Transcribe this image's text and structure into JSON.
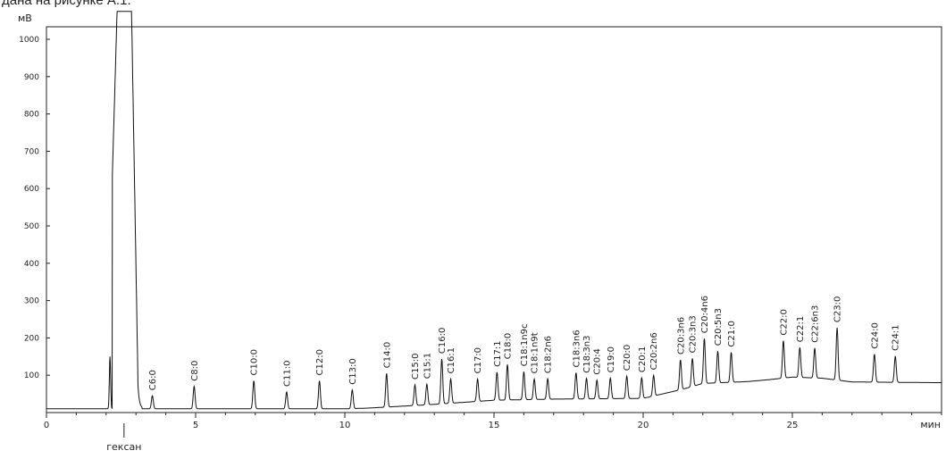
{
  "caption": "дана на рисунке А.1.",
  "chart_data": {
    "type": "line",
    "title": "",
    "ylabel": "мВ",
    "xlabel": "мин",
    "xlim": [
      0,
      30
    ],
    "ylim": [
      0,
      1080
    ],
    "x_ticks": [
      0,
      5,
      10,
      15,
      20,
      25
    ],
    "y_ticks": [
      100,
      200,
      300,
      400,
      500,
      600,
      700,
      800,
      900,
      1000
    ],
    "grid": false,
    "solvent_label": "гексан",
    "solvent_x": 2.6,
    "main_peak": {
      "name": "гексан",
      "x_start": 2.25,
      "x_end": 2.95,
      "height": 1075
    },
    "peaks": [
      {
        "name": "C6:0",
        "x": 3.55,
        "height": 35
      },
      {
        "name": "C8:0",
        "x": 4.95,
        "height": 60
      },
      {
        "name": "C10:0",
        "x": 6.95,
        "height": 75
      },
      {
        "name": "C11:0",
        "x": 8.05,
        "height": 45
      },
      {
        "name": "C12:0",
        "x": 9.15,
        "height": 75
      },
      {
        "name": "C13:0",
        "x": 10.25,
        "height": 50
      },
      {
        "name": "C14:0",
        "x": 11.4,
        "height": 90
      },
      {
        "name": "C15:0",
        "x": 12.35,
        "height": 55
      },
      {
        "name": "C15:1",
        "x": 12.75,
        "height": 55
      },
      {
        "name": "C16:0",
        "x": 13.25,
        "height": 120
      },
      {
        "name": "C16:1",
        "x": 13.55,
        "height": 65
      },
      {
        "name": "C17:0",
        "x": 14.45,
        "height": 60
      },
      {
        "name": "C17:1",
        "x": 15.1,
        "height": 75
      },
      {
        "name": "C18:0",
        "x": 15.45,
        "height": 95
      },
      {
        "name": "C18:1n9c",
        "x": 16.0,
        "height": 75
      },
      {
        "name": "C18:1n9t",
        "x": 16.35,
        "height": 55
      },
      {
        "name": "C18:2n6",
        "x": 16.8,
        "height": 55
      },
      {
        "name": "C18:3n6",
        "x": 17.75,
        "height": 70
      },
      {
        "name": "C18:3n3",
        "x": 18.1,
        "height": 55
      },
      {
        "name": "C20:4",
        "x": 18.45,
        "height": 50
      },
      {
        "name": "C19:0",
        "x": 18.9,
        "height": 55
      },
      {
        "name": "C20:0",
        "x": 19.45,
        "height": 60
      },
      {
        "name": "C20:1",
        "x": 19.95,
        "height": 55
      },
      {
        "name": "C20:2n6",
        "x": 20.35,
        "height": 55
      },
      {
        "name": "C20:3n6",
        "x": 21.25,
        "height": 80
      },
      {
        "name": "C20:3n3",
        "x": 21.65,
        "height": 75
      },
      {
        "name": "C20:4n6",
        "x": 22.05,
        "height": 120
      },
      {
        "name": "C20:5n3",
        "x": 22.5,
        "height": 85
      },
      {
        "name": "C21:0",
        "x": 22.95,
        "height": 80
      },
      {
        "name": "C22:0",
        "x": 24.7,
        "height": 100
      },
      {
        "name": "C22:1",
        "x": 25.25,
        "height": 80
      },
      {
        "name": "C22:6n3",
        "x": 25.75,
        "height": 80
      },
      {
        "name": "C23:0",
        "x": 26.5,
        "height": 140
      },
      {
        "name": "C24:0",
        "x": 27.75,
        "height": 75
      },
      {
        "name": "C24:1",
        "x": 28.45,
        "height": 70
      }
    ]
  }
}
